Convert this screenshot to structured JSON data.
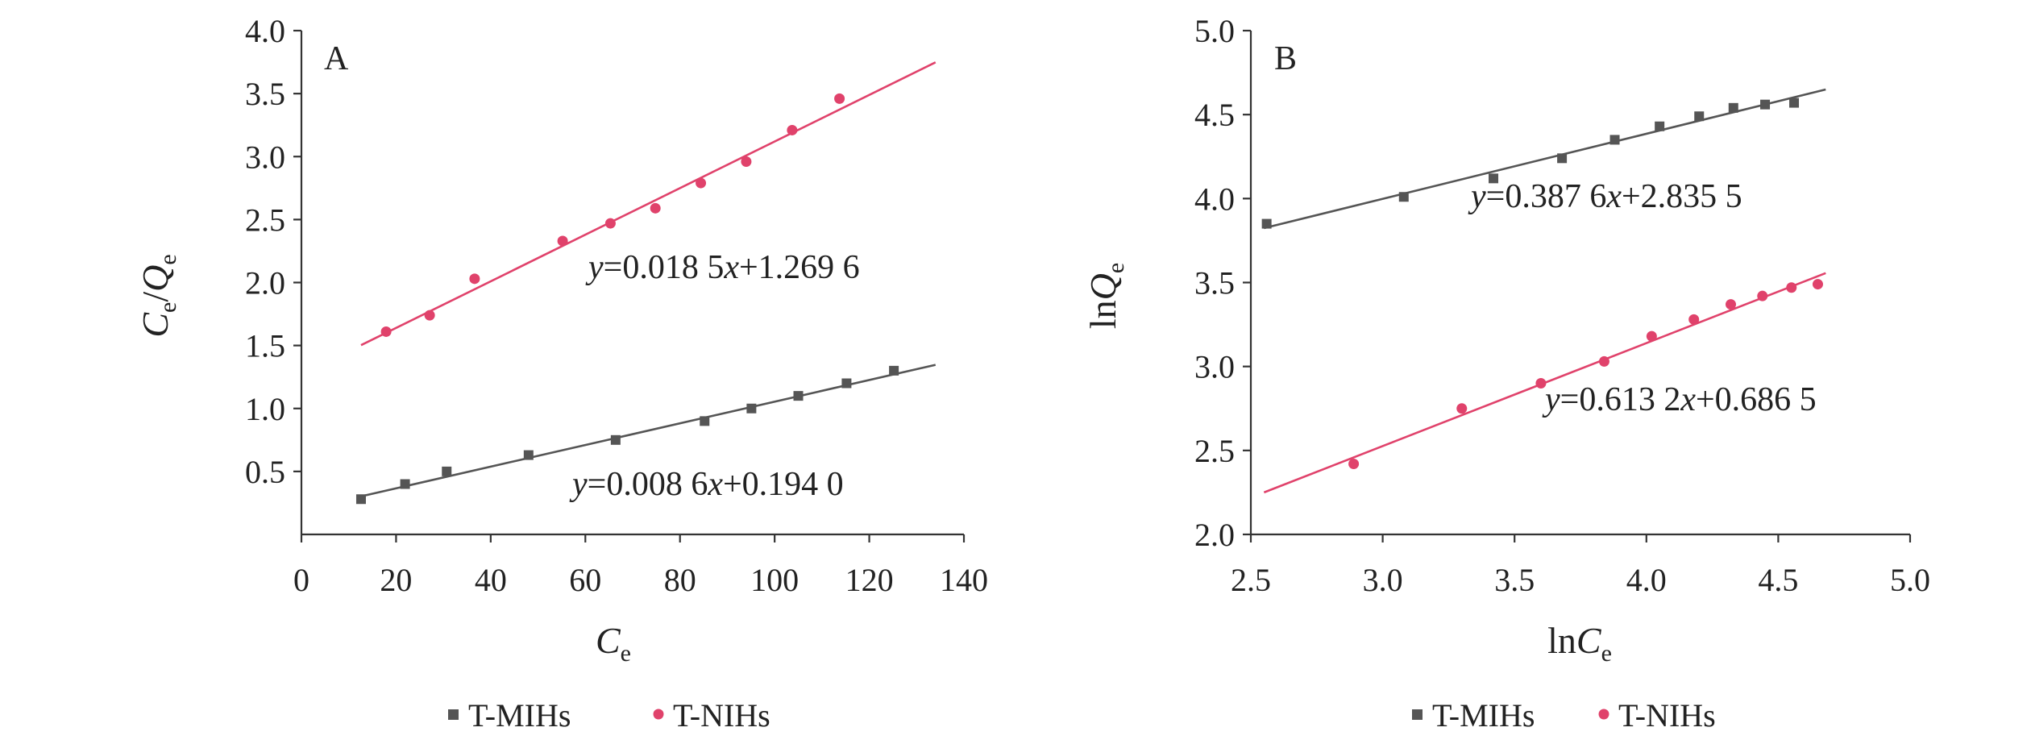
{
  "chart_data": [
    {
      "type": "scatter",
      "panel_label": "A",
      "xlabel": "C_e",
      "ylabel": "C_e/Q_e",
      "xlim": [
        0,
        140
      ],
      "ylim": [
        0,
        4.0
      ],
      "x_ticks": [
        0,
        20,
        40,
        60,
        80,
        100,
        120,
        140
      ],
      "y_ticks": [
        0.5,
        1.0,
        1.5,
        2.0,
        2.5,
        3.0,
        3.5,
        4.0
      ],
      "x_tick_labels": [
        "0",
        "20",
        "40",
        "60",
        "80",
        "100",
        "120",
        "140"
      ],
      "y_tick_labels": [
        "0.5",
        "1.0",
        "1.5",
        "2.0",
        "2.5",
        "3.0",
        "3.5",
        "4.0"
      ],
      "series": [
        {
          "name": "T-MIHs",
          "color": "#555555",
          "marker": "square",
          "x": [
            12.6,
            21.9,
            30.7,
            48.0,
            66.4,
            85.2,
            95.1,
            105.0,
            115.2,
            125.2
          ],
          "y": [
            0.28,
            0.4,
            0.5,
            0.63,
            0.75,
            0.9,
            1.0,
            1.1,
            1.2,
            1.3
          ],
          "fit": {
            "slope": 0.0086,
            "intercept": 0.194,
            "x_range": [
              12.6,
              134
            ],
            "equation_parts": [
              "y",
              "=0.008 6",
              "x",
              "+0.194 0"
            ]
          }
        },
        {
          "name": "T-NIHs",
          "color": "#e0426b",
          "marker": "circle",
          "x": [
            17.9,
            27.1,
            36.6,
            55.2,
            65.3,
            74.8,
            84.4,
            94.0,
            103.7,
            113.7
          ],
          "y": [
            1.61,
            1.74,
            2.03,
            2.33,
            2.47,
            2.59,
            2.79,
            2.96,
            3.21,
            3.46
          ],
          "fit": {
            "slope": 0.0185,
            "intercept": 1.2696,
            "x_range": [
              12.6,
              134
            ],
            "equation_parts": [
              "y",
              "=0.018 5",
              "x",
              "+1.269 6"
            ]
          }
        }
      ],
      "grid": false,
      "legend": {
        "position": "bottom",
        "entries": [
          "T-MIHs",
          "T-NIHs"
        ]
      }
    },
    {
      "type": "scatter",
      "panel_label": "B",
      "xlabel": "lnC_e",
      "ylabel": "lnQ_e",
      "xlim": [
        2.5,
        5.0
      ],
      "ylim": [
        2.0,
        5.0
      ],
      "x_ticks": [
        2.5,
        3.0,
        3.5,
        4.0,
        4.5,
        5.0
      ],
      "y_ticks": [
        2.0,
        2.5,
        3.0,
        3.5,
        4.0,
        4.5,
        5.0
      ],
      "x_tick_labels": [
        "2.5",
        "3.0",
        "3.5",
        "4.0",
        "4.5",
        "5.0"
      ],
      "y_tick_labels": [
        "2.0",
        "2.5",
        "3.0",
        "3.5",
        "4.0",
        "4.5",
        "5.0"
      ],
      "series": [
        {
          "name": "T-MIHs",
          "color": "#555555",
          "marker": "square",
          "x": [
            2.56,
            3.08,
            3.42,
            3.68,
            3.88,
            4.05,
            4.2,
            4.33,
            4.45,
            4.56
          ],
          "y": [
            3.85,
            4.01,
            4.12,
            4.24,
            4.35,
            4.43,
            4.49,
            4.54,
            4.56,
            4.57
          ],
          "fit": {
            "slope": 0.3876,
            "intercept": 2.8355,
            "x_range": [
              2.55,
              4.68
            ],
            "equation_parts": [
              "y",
              "=0.387 6",
              "x",
              "+2.835 5"
            ]
          }
        },
        {
          "name": "T-NIHs",
          "color": "#e0426b",
          "marker": "circle",
          "x": [
            2.89,
            3.3,
            3.6,
            3.84,
            4.02,
            4.18,
            4.32,
            4.44,
            4.55,
            4.65
          ],
          "y": [
            2.42,
            2.75,
            2.9,
            3.03,
            3.18,
            3.28,
            3.37,
            3.42,
            3.47,
            3.49
          ],
          "fit": {
            "slope": 0.6132,
            "intercept": 0.6865,
            "x_range": [
              2.55,
              4.68
            ],
            "equation_parts": [
              "y",
              "=0.613 2",
              "x",
              "+0.686 5"
            ]
          }
        }
      ],
      "grid": false,
      "legend": {
        "position": "bottom",
        "entries": [
          "T-MIHs",
          "T-NIHs"
        ]
      }
    }
  ]
}
